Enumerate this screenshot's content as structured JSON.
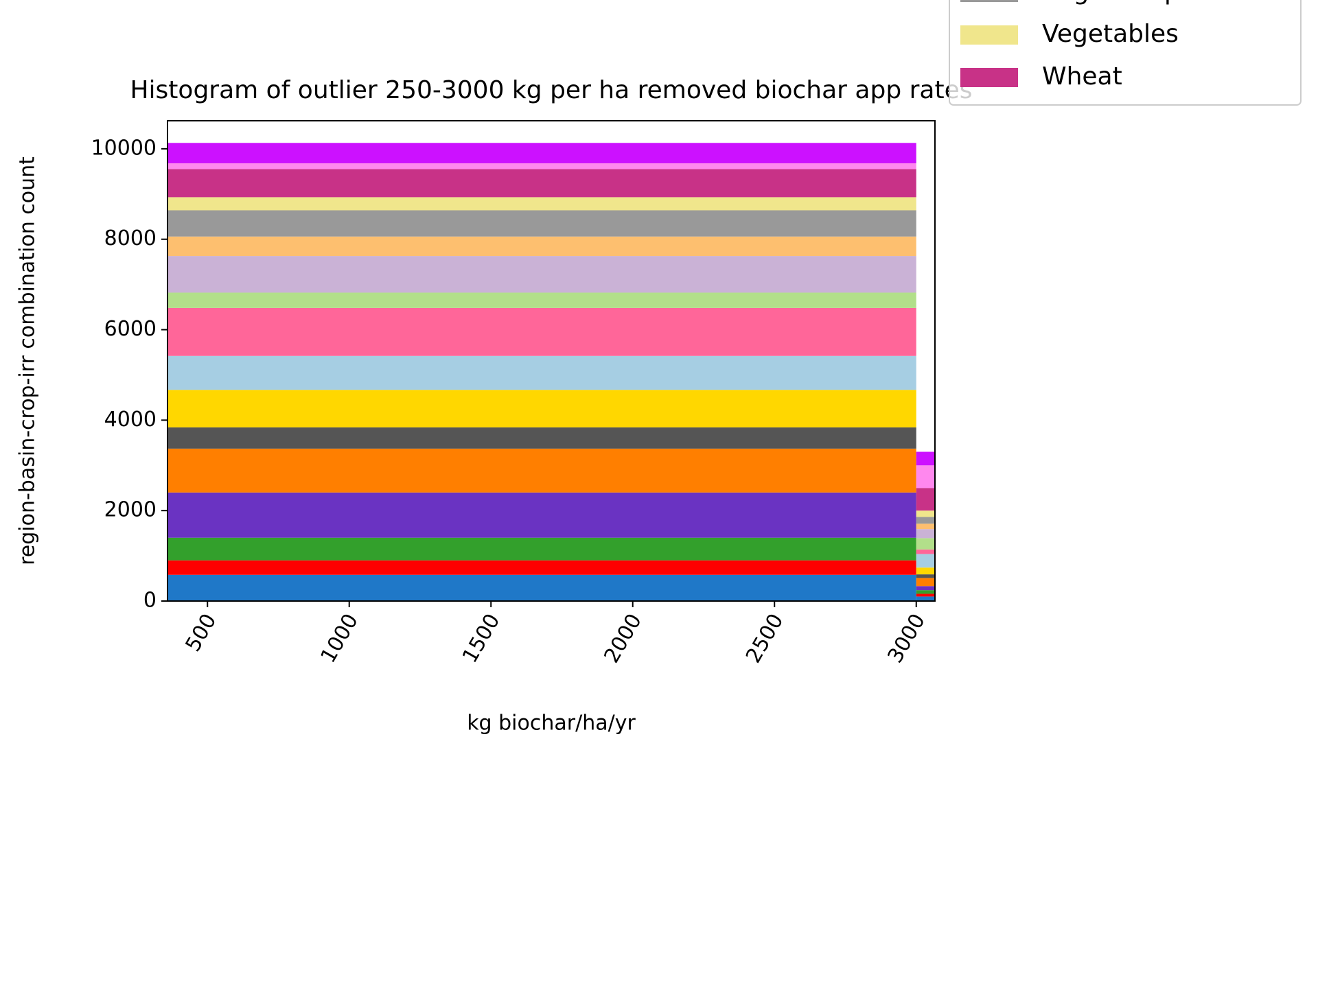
{
  "chart_data": {
    "type": "histogram",
    "title": "Histogram of outlier 250-3000 kg per ha removed biochar app rates",
    "x_label": "kg biochar/ha/yr",
    "y_label": "region-basin-crop-irr combination count",
    "bins": [
      359,
      3000,
      3066
    ],
    "stacked": true,
    "series": [
      {
        "color": "#1f78c8",
        "values": [
          580,
          100
        ]
      },
      {
        "color": "#ff0000",
        "values": [
          320,
          60
        ]
      },
      {
        "color": "#33a02c",
        "values": [
          500,
          80
        ]
      },
      {
        "color": "#6a33c2",
        "values": [
          1000,
          90
        ]
      },
      {
        "color": "#ff7f00",
        "values": [
          970,
          180
        ]
      },
      {
        "color": "#555555",
        "values": [
          470,
          80
        ]
      },
      {
        "color": "#ffd700",
        "values": [
          830,
          150
        ]
      },
      {
        "color": "#a6cee3",
        "values": [
          750,
          300
        ]
      },
      {
        "color": "#ff6699",
        "values": [
          1060,
          100
        ]
      },
      {
        "color": "#b2df8a",
        "values": [
          340,
          250
        ]
      },
      {
        "color": "#cab2d6",
        "values": [
          810,
          200
        ]
      },
      {
        "color": "#fdbf6f",
        "values": [
          430,
          120
        ]
      },
      {
        "name": "Sugar Crops",
        "color": "#999999",
        "values": [
          580,
          150
        ]
      },
      {
        "name": "Vegetables",
        "color": "#f0e68c",
        "values": [
          290,
          140
        ]
      },
      {
        "name": "Wheat",
        "color": "#c83287",
        "values": [
          620,
          500
        ]
      },
      {
        "color": "#ff88ee",
        "values": [
          130,
          500
        ]
      },
      {
        "color": "#cc11ff",
        "values": [
          450,
          300
        ]
      }
    ],
    "xlim": [
      359,
      3066
    ],
    "ylim": [
      0,
      10620
    ],
    "xticks": [
      500,
      1000,
      1500,
      2000,
      2500,
      3000
    ],
    "yticks": [
      0,
      2000,
      4000,
      6000,
      8000,
      10000
    ],
    "legend_position": "upper right"
  }
}
